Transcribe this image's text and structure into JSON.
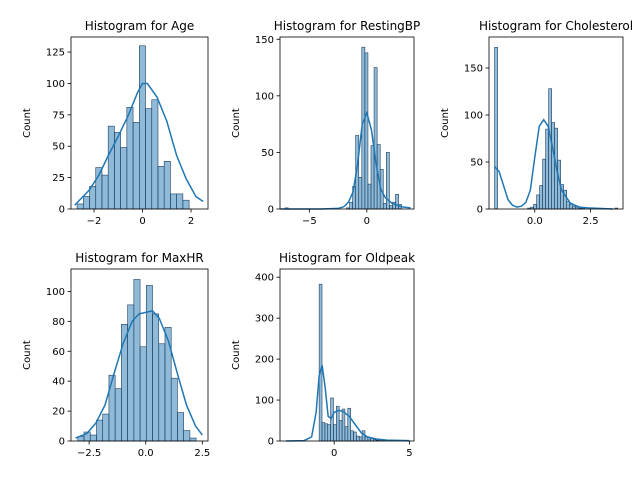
{
  "chart_data": [
    {
      "type": "bar",
      "title": "Histogram for Age",
      "xlabel": "",
      "ylabel": "Count",
      "xlim": [
        -2.95,
        2.7
      ],
      "ylim": [
        0,
        137
      ],
      "xticks": [
        -2,
        0,
        2
      ],
      "yticks": [
        0,
        25,
        50,
        75,
        100,
        125
      ],
      "bins": {
        "start": -2.7,
        "width": 0.2567,
        "counts": [
          4,
          10,
          18,
          33,
          27,
          66,
          61,
          49,
          81,
          69,
          130,
          80,
          87,
          34,
          38,
          12,
          12,
          7
        ]
      },
      "kde": {
        "x": [
          -2.8,
          -2.2,
          -1.8,
          -1.4,
          -1.0,
          -0.6,
          -0.2,
          0.0,
          0.2,
          0.6,
          1.0,
          1.4,
          1.8,
          2.2,
          2.5
        ],
        "y": [
          3,
          15,
          27,
          43,
          58,
          74,
          93,
          100,
          100,
          89,
          70,
          43,
          24,
          10,
          6
        ]
      }
    },
    {
      "type": "bar",
      "title": "Histogram for RestingBP",
      "xlabel": "",
      "ylabel": "Count",
      "xlim": [
        -7.55,
        4.1
      ],
      "ylim": [
        0,
        152
      ],
      "xticks": [
        -5,
        0
      ],
      "yticks": [
        0,
        50,
        100,
        150
      ],
      "bins": {
        "start": -7.1,
        "width": 0.2665,
        "counts": [
          1,
          0,
          0,
          0,
          0,
          0,
          0,
          0,
          0,
          0,
          0,
          0,
          0,
          0,
          0,
          0,
          0,
          0,
          0,
          0,
          1,
          6,
          20,
          65,
          28,
          143,
          138,
          22,
          56,
          125,
          57,
          35,
          5,
          50,
          3,
          6,
          13,
          4
        ]
      },
      "kde": {
        "x": [
          -7.5,
          -4.0,
          -2.5,
          -2.0,
          -1.6,
          -1.2,
          -0.8,
          -0.4,
          0.0,
          0.4,
          0.8,
          1.2,
          1.6,
          2.2,
          3.0,
          3.8
        ],
        "y": [
          0,
          0,
          0.5,
          2,
          6,
          15,
          40,
          75,
          85,
          70,
          40,
          18,
          10,
          5,
          2,
          1
        ]
      }
    },
    {
      "type": "bar",
      "title": "Histogram for Cholesterol",
      "xlabel": "",
      "ylabel": "Count",
      "xlim": [
        -2.05,
        3.95
      ],
      "ylim": [
        0,
        183
      ],
      "xticks": [
        0.0,
        2.5
      ],
      "yticks": [
        0,
        50,
        100,
        150
      ],
      "bins": {
        "start": -1.8,
        "width": 0.1345,
        "counts": [
          172,
          0,
          0,
          0,
          0,
          0,
          0,
          0,
          0,
          0,
          0,
          1,
          2,
          5,
          15,
          25,
          53,
          85,
          128,
          92,
          86,
          52,
          26,
          20,
          8,
          5,
          3,
          2,
          1,
          1,
          0,
          0,
          0,
          0,
          0,
          0,
          0,
          0,
          0,
          0,
          1
        ]
      },
      "kde": {
        "x": [
          -1.8,
          -1.6,
          -1.4,
          -1.2,
          -1.0,
          -0.8,
          -0.6,
          -0.4,
          -0.2,
          0.0,
          0.2,
          0.4,
          0.6,
          0.8,
          1.0,
          1.2,
          1.6,
          2.0,
          2.5,
          3.5
        ],
        "y": [
          45,
          40,
          25,
          10,
          4,
          2,
          3,
          7,
          20,
          55,
          88,
          95,
          88,
          65,
          40,
          20,
          6,
          2,
          1,
          0
        ]
      }
    },
    {
      "type": "bar",
      "title": "Histogram for MaxHR",
      "xlabel": "",
      "ylabel": "Count",
      "xlim": [
        -3.3,
        2.75
      ],
      "ylim": [
        0,
        115
      ],
      "xticks": [
        -2.5,
        0.0,
        2.5
      ],
      "yticks": [
        0,
        20,
        40,
        60,
        80,
        100
      ],
      "bins": {
        "start": -3.0,
        "width": 0.275,
        "counts": [
          3,
          6,
          4,
          14,
          18,
          44,
          35,
          78,
          91,
          108,
          63,
          104,
          85,
          65,
          76,
          42,
          19,
          7,
          2,
          0
        ]
      },
      "kde": {
        "x": [
          -3.1,
          -2.6,
          -2.2,
          -1.8,
          -1.4,
          -1.0,
          -0.6,
          -0.3,
          0.0,
          0.3,
          0.6,
          1.0,
          1.4,
          1.8,
          2.2,
          2.5
        ],
        "y": [
          2,
          5,
          12,
          24,
          45,
          65,
          80,
          85,
          86,
          87,
          82,
          67,
          45,
          24,
          10,
          4
        ]
      }
    },
    {
      "type": "bar",
      "title": "Histogram for Oldpeak",
      "xlabel": "",
      "ylabel": "Count",
      "xlim": [
        -3.6,
        5.3
      ],
      "ylim": [
        0,
        420
      ],
      "xticks": [
        0,
        5
      ],
      "yticks": [
        0,
        100,
        200,
        300,
        400
      ],
      "bins": {
        "start": -1.0,
        "width": 0.1902,
        "counts": [
          383,
          45,
          42,
          40,
          105,
          40,
          85,
          50,
          78,
          35,
          80,
          25,
          22,
          12,
          10,
          25,
          10,
          5,
          6,
          3,
          2,
          1,
          1,
          0,
          0,
          0,
          0,
          0,
          0,
          0,
          1
        ]
      },
      "kde": {
        "x": [
          -3.2,
          -2.0,
          -1.5,
          -1.2,
          -1.0,
          -0.8,
          -0.6,
          -0.4,
          -0.2,
          0.0,
          0.3,
          0.6,
          1.0,
          1.4,
          1.8,
          2.2,
          2.8,
          3.5,
          5.0
        ],
        "y": [
          0,
          1,
          10,
          70,
          160,
          185,
          130,
          60,
          55,
          70,
          75,
          72,
          60,
          40,
          20,
          10,
          5,
          2,
          1
        ]
      }
    }
  ]
}
